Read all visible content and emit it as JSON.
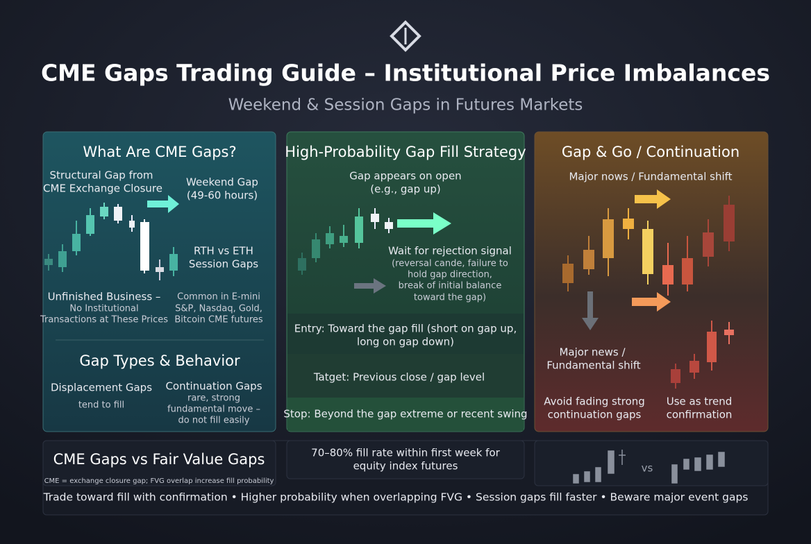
{
  "header": {
    "title": "CME Gaps Trading Guide – Institutional Price Imbalances",
    "subtitle": "Weekend & Session Gaps in Futures Markets"
  },
  "panels": [
    {
      "title": "What Are CME Gaps?",
      "structural": [
        "Structural Gap from",
        "CME Exchange Closure"
      ],
      "weekend": [
        "Weekend Gap",
        "(49-60 hours)"
      ],
      "session": [
        "RTH vs ETH",
        "Session Gaps"
      ],
      "unfinished": [
        "Unfinished Business –",
        "No Institutional",
        "Transactions at These Prices"
      ],
      "common": [
        "Common in E-mini",
        "S&P, Nasdaq, Gold,",
        "Bitcoin CME futures"
      ],
      "types_title": "Gap Types & Behavior",
      "displacement": [
        "Displacement Gaps",
        "tend to fill"
      ],
      "continuation": [
        "Continuation Gaps",
        "rare, strong",
        "fundamental move –",
        "do not fill easily"
      ]
    },
    {
      "title": "High-Probability Gap Fill Strategy",
      "open": [
        "Gap appears on open",
        "(e.g., gap up)"
      ],
      "wait": [
        "Wait for rejection signal",
        "(reversal cande, failure to",
        "hold gap direction,",
        "break of initial balance",
        "toward the gap)"
      ],
      "entry": [
        "Entry: Toward the gap fill (short on gap up,",
        "long on gap down)"
      ],
      "target": "Tatget: Previous close / gap level",
      "stop": "Stop: Beyond the gap extreme or recent swing"
    },
    {
      "title": "Gap & Go / Continuation",
      "news_top": "Major nows / Fundamental shift",
      "news": [
        "Major news /",
        "Fundamental shift"
      ],
      "avoid": [
        "Avoid fading strong",
        "continuation gaps"
      ],
      "use": [
        "Use as trend",
        "confirmation"
      ]
    }
  ],
  "footer": {
    "compare_title": "CME Gaps vs Fair Value Gaps",
    "compare_note": "CME = exchange closure gap; FVG overlap increase fill probability",
    "fill_rate": [
      "70–80% fill rate within first week for",
      "equity index futures"
    ],
    "vs": "vs",
    "tips": "Trade toward fill with confirmation • Higher probability when overlapping FVG • Session gaps fill faster  •  Beware major event gaps"
  }
}
